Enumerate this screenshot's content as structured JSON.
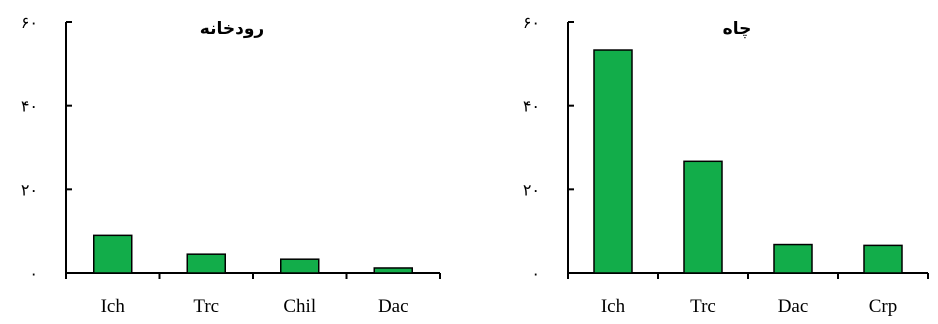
{
  "colors": {
    "bar": "#12ad4a",
    "axis": "#000000"
  },
  "chart_data": [
    {
      "type": "bar",
      "title": "رودخانه",
      "categories": [
        "Ich",
        "Trc",
        "Chil",
        "Dac"
      ],
      "values": [
        9,
        4.5,
        3.3,
        1.2
      ],
      "ylim": [
        0,
        60
      ],
      "yticks": [
        0,
        20,
        40,
        60
      ],
      "ytick_labels": [
        "۰",
        "۲۰",
        "۴۰",
        "۶۰"
      ],
      "xlabel": "",
      "ylabel": "",
      "grid": false,
      "legend": "none"
    },
    {
      "type": "bar",
      "title": "چاه",
      "categories": [
        "Ich",
        "Trc",
        "Dac",
        "Crp"
      ],
      "values": [
        53.3,
        26.7,
        6.8,
        6.6
      ],
      "ylim": [
        0,
        60
      ],
      "yticks": [
        0,
        20,
        40,
        60
      ],
      "ytick_labels": [
        "۰",
        "۲۰",
        "۴۰",
        "۶۰"
      ],
      "xlabel": "",
      "ylabel": "",
      "grid": false,
      "legend": "none"
    }
  ]
}
